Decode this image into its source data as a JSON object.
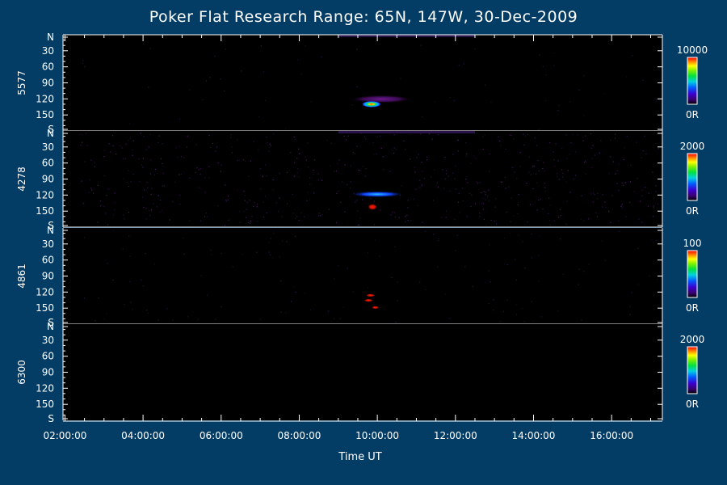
{
  "page": {
    "background": "#033d66",
    "plot_background": "#000000",
    "axis_color": "#ffffff"
  },
  "chart_data": {
    "type": "heatmap",
    "title": "Poker Flat Research Range: 65N, 147W, 30-Dec-2009",
    "xlabel": "Time UT",
    "x_ticks": [
      "02:00:00",
      "04:00:00",
      "06:00:00",
      "08:00:00",
      "10:00:00",
      "12:00:00",
      "14:00:00",
      "16:00:00"
    ],
    "x_range_hours": [
      1.95,
      17.3
    ],
    "y_range_deg": [
      0,
      180
    ],
    "y_ticks": [
      "N",
      "30",
      "60",
      "90",
      "120",
      "150",
      "S"
    ],
    "colormap": "rainbow (black-purple-blue-cyan-green-yellow-orange-red)",
    "panels": [
      {
        "ylabel": "5577",
        "colorbar_max": "10000",
        "colorbar_min": "0R",
        "features": [
          {
            "time_start": 9.3,
            "time_end": 10.9,
            "elevation": 122,
            "intensity_max": 8000
          },
          {
            "time_start": 9.6,
            "time_end": 10.1,
            "elevation": 132,
            "intensity_max": 10000
          }
        ]
      },
      {
        "ylabel": "4278",
        "colorbar_max": "2000",
        "colorbar_min": "0R",
        "features": [
          {
            "time_start": 9.3,
            "time_end": 10.7,
            "elevation": 120,
            "intensity_max": 1200
          },
          {
            "time_start": 9.75,
            "time_end": 10.0,
            "elevation": 145,
            "intensity_max": 2000
          }
        ]
      },
      {
        "ylabel": "4861",
        "colorbar_max": "100",
        "colorbar_min": "0R",
        "features": [
          {
            "time_start": 9.7,
            "time_end": 9.95,
            "elevation": 128,
            "intensity_max": 100
          },
          {
            "time_start": 9.65,
            "time_end": 9.9,
            "elevation": 138,
            "intensity_max": 100
          },
          {
            "time_start": 9.85,
            "time_end": 10.05,
            "elevation": 152,
            "intensity_max": 100
          }
        ]
      },
      {
        "ylabel": "6300",
        "colorbar_max": "2000",
        "colorbar_min": "0R",
        "features": []
      }
    ]
  }
}
